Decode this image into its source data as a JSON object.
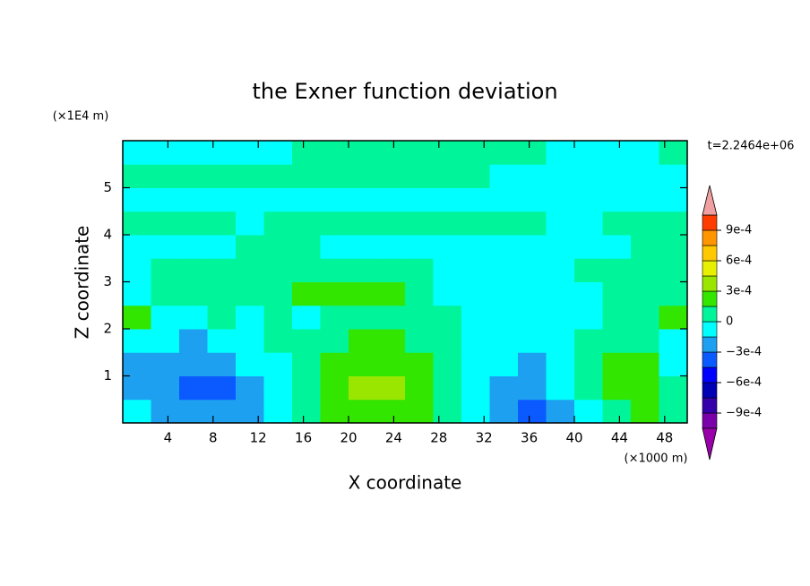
{
  "chart_data": {
    "type": "contour",
    "title": "the Exner function deviation",
    "x_label": "X coordinate",
    "y_label": "Z coordinate",
    "x_unit": "(×1000 m)",
    "y_unit": "(×1E4 m)",
    "annotation": "t=2.2464e+06",
    "xlim": [
      0,
      50
    ],
    "ylim": [
      0,
      6
    ],
    "xticks": [
      4,
      8,
      12,
      16,
      20,
      24,
      28,
      32,
      36,
      40,
      44,
      48
    ],
    "yticks": [
      1,
      2,
      3,
      4,
      5
    ],
    "x_edges": [
      0,
      2.5,
      5,
      7.5,
      10,
      12.5,
      15,
      17.5,
      20,
      22.5,
      25,
      27.5,
      30,
      32.5,
      35,
      37.5,
      40,
      42.5,
      45,
      47.5,
      50
    ],
    "y_edges": [
      0,
      0.5,
      1,
      1.5,
      2,
      2.5,
      3,
      3.5,
      4,
      4.5,
      5,
      5.5,
      6
    ],
    "z": [
      [
        -5e-05,
        -0.0002,
        -0.0002,
        -0.0002,
        -0.0002,
        -5e-05,
        5e-05,
        0.0002,
        0.0002,
        0.0002,
        0.0002,
        5e-05,
        -5e-05,
        -0.0002,
        -0.00035,
        -0.0002,
        -5e-05,
        5e-05,
        0.0002,
        5e-05
      ],
      [
        -0.0002,
        -0.0002,
        -0.00035,
        -0.00035,
        -0.0002,
        -5e-05,
        5e-05,
        0.0002,
        0.00035,
        0.00035,
        0.0002,
        5e-05,
        -5e-05,
        -0.0002,
        -0.0002,
        -5e-05,
        5e-05,
        0.0002,
        0.0002,
        5e-05
      ],
      [
        -0.0002,
        -0.0002,
        -0.0002,
        -0.0002,
        -5e-05,
        -5e-05,
        5e-05,
        0.0002,
        0.0002,
        0.0002,
        0.0002,
        5e-05,
        -5e-05,
        -5e-05,
        -0.0002,
        -5e-05,
        5e-05,
        0.0002,
        0.0002,
        -5e-05
      ],
      [
        -5e-05,
        -5e-05,
        -0.0002,
        -5e-05,
        -5e-05,
        5e-05,
        5e-05,
        5e-05,
        0.0002,
        0.0002,
        5e-05,
        5e-05,
        -5e-05,
        -5e-05,
        -5e-05,
        -5e-05,
        5e-05,
        5e-05,
        5e-05,
        -5e-05
      ],
      [
        0.0002,
        -5e-05,
        -5e-05,
        5e-05,
        -5e-05,
        5e-05,
        -5e-05,
        5e-05,
        5e-05,
        5e-05,
        5e-05,
        5e-05,
        -5e-05,
        -5e-05,
        -5e-05,
        -5e-05,
        -5e-05,
        5e-05,
        5e-05,
        0.0002
      ],
      [
        -5e-05,
        5e-05,
        5e-05,
        5e-05,
        5e-05,
        5e-05,
        0.0002,
        0.0002,
        0.0002,
        0.0002,
        5e-05,
        -5e-05,
        -5e-05,
        -5e-05,
        -5e-05,
        -5e-05,
        -5e-05,
        5e-05,
        5e-05,
        5e-05
      ],
      [
        -5e-05,
        5e-05,
        5e-05,
        5e-05,
        5e-05,
        5e-05,
        5e-05,
        5e-05,
        5e-05,
        5e-05,
        5e-05,
        -5e-05,
        -5e-05,
        -5e-05,
        -5e-05,
        -5e-05,
        5e-05,
        5e-05,
        5e-05,
        5e-05
      ],
      [
        -5e-05,
        -5e-05,
        -5e-05,
        -5e-05,
        5e-05,
        5e-05,
        5e-05,
        -5e-05,
        -5e-05,
        -5e-05,
        -5e-05,
        -5e-05,
        -5e-05,
        -5e-05,
        -5e-05,
        -5e-05,
        -5e-05,
        -5e-05,
        5e-05,
        5e-05
      ],
      [
        5e-05,
        5e-05,
        5e-05,
        5e-05,
        -5e-05,
        5e-05,
        5e-05,
        5e-05,
        5e-05,
        5e-05,
        5e-05,
        5e-05,
        5e-05,
        5e-05,
        5e-05,
        -5e-05,
        -5e-05,
        5e-05,
        5e-05,
        5e-05
      ],
      [
        -5e-05,
        -5e-05,
        -5e-05,
        -5e-05,
        -5e-05,
        -5e-05,
        -5e-05,
        -5e-05,
        -5e-05,
        -5e-05,
        -5e-05,
        -5e-05,
        -5e-05,
        -5e-05,
        -5e-05,
        -5e-05,
        -5e-05,
        -5e-05,
        -5e-05,
        -5e-05
      ],
      [
        5e-05,
        5e-05,
        5e-05,
        5e-05,
        5e-05,
        5e-05,
        5e-05,
        5e-05,
        5e-05,
        5e-05,
        5e-05,
        5e-05,
        5e-05,
        -5e-05,
        -5e-05,
        -5e-05,
        -5e-05,
        -5e-05,
        -5e-05,
        -5e-05
      ],
      [
        -5e-05,
        -5e-05,
        -5e-05,
        -5e-05,
        -5e-05,
        -5e-05,
        5e-05,
        5e-05,
        5e-05,
        5e-05,
        5e-05,
        5e-05,
        5e-05,
        5e-05,
        5e-05,
        -5e-05,
        -5e-05,
        -5e-05,
        -5e-05,
        5e-05
      ]
    ],
    "colorbar": {
      "levels": [
        -0.00105,
        -0.0009,
        -0.00075,
        -0.0006,
        -0.00045,
        -0.0003,
        -0.00015,
        0,
        0.00015,
        0.0003,
        0.00045,
        0.0006,
        0.00075,
        0.0009,
        0.00105
      ],
      "colors": [
        "#7a00aa",
        "#3300aa",
        "#0000b4",
        "#0000ff",
        "#0a5aff",
        "#1ea0f0",
        "#00ffff",
        "#00f59b",
        "#33e600",
        "#9be600",
        "#e6f000",
        "#ffc800",
        "#ff9600",
        "#ff3c00",
        "#ff0000"
      ],
      "under_color": "#9900aa",
      "over_color": "#f0a0a0",
      "ticks": [
        {
          "value": 0.0009,
          "label": "9e-4"
        },
        {
          "value": 0.0006,
          "label": "6e-4"
        },
        {
          "value": 0.0003,
          "label": "3e-4"
        },
        0,
        {
          "value": -0.0003,
          "label": "−3e-4"
        },
        {
          "value": -0.0006,
          "label": "−6e-4"
        },
        {
          "value": -0.0009,
          "label": "−9e-4"
        }
      ]
    }
  }
}
